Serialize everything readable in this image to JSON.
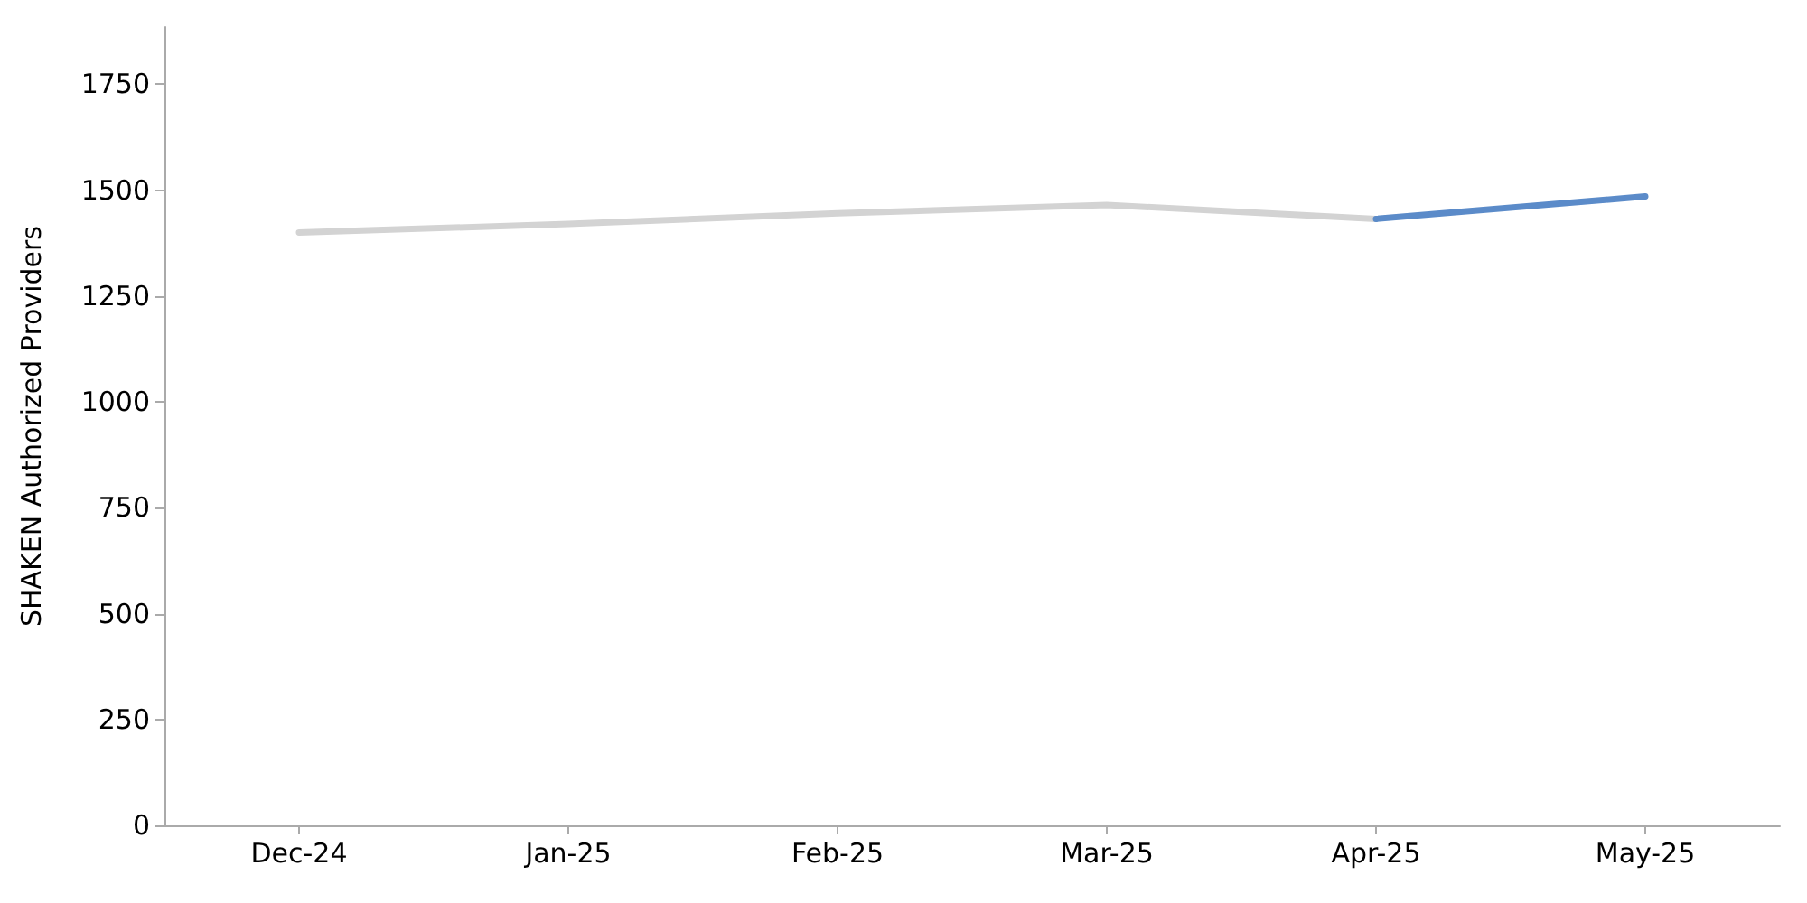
{
  "chart_data": {
    "type": "line",
    "ylabel": "SHAKEN Authorized Providers",
    "categories": [
      "Dec-24",
      "Jan-25",
      "Feb-25",
      "Mar-25",
      "Apr-25",
      "May-25"
    ],
    "series": [
      {
        "color": "#d3d3d3",
        "values": [
          1400,
          1420,
          1445,
          1465,
          1432,
          null
        ]
      },
      {
        "color": "#5b8bc9",
        "values": [
          null,
          null,
          null,
          null,
          1432,
          1485
        ]
      }
    ],
    "ylim": [
      0,
      1885
    ],
    "yticks": [
      0,
      250,
      500,
      750,
      1000,
      1250,
      1500,
      1750
    ],
    "grid": false,
    "marker": "none"
  }
}
